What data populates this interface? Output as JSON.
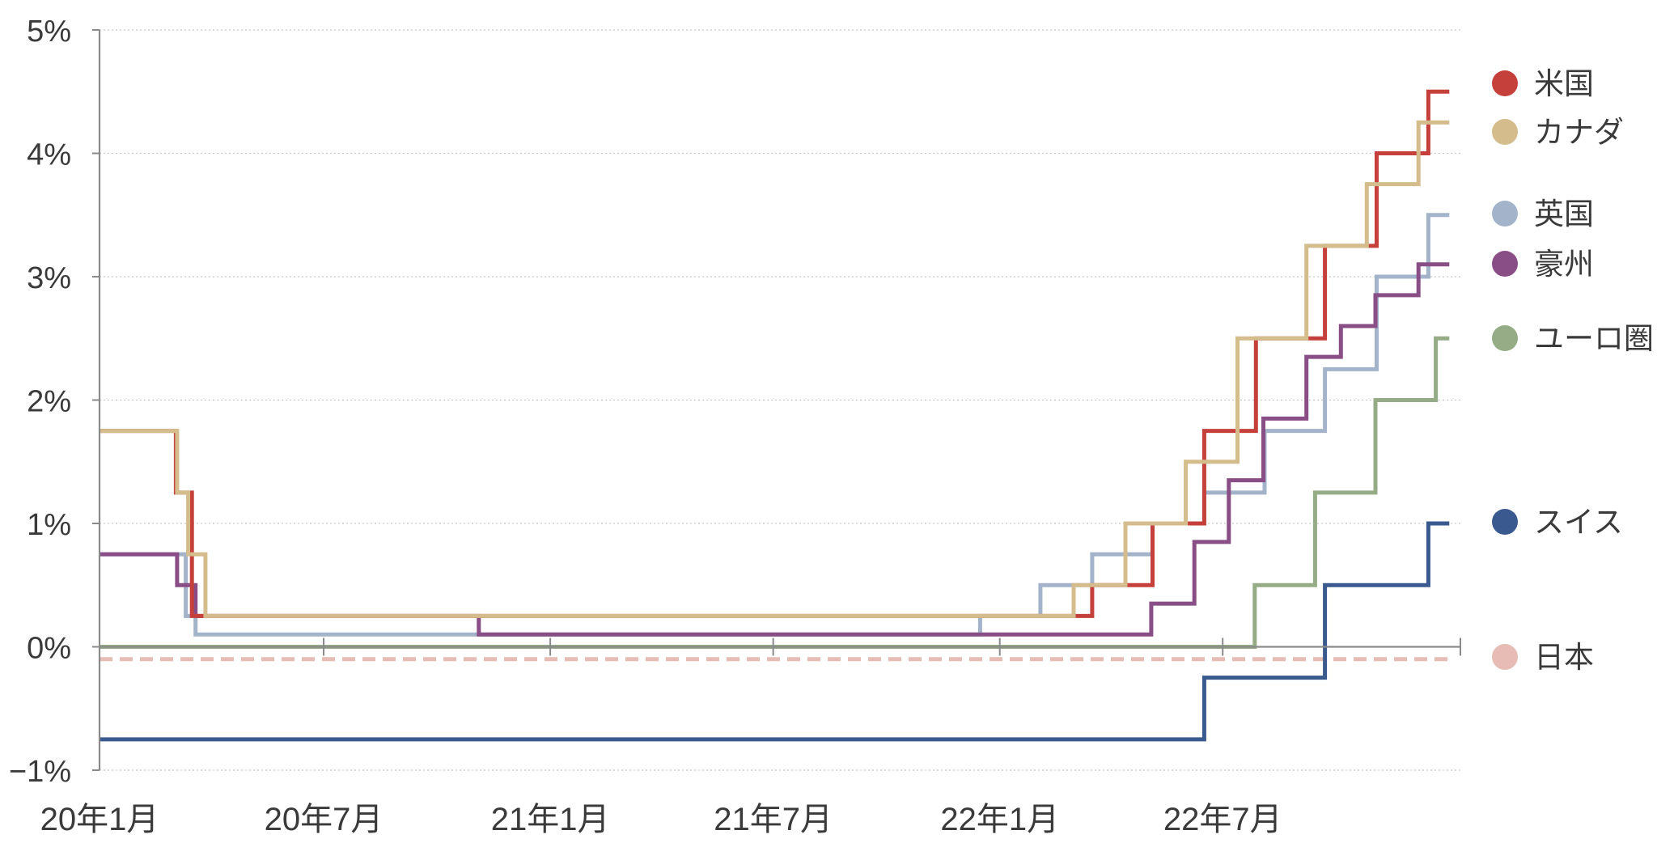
{
  "chart_data": {
    "type": "line",
    "step": true,
    "title": "",
    "xlabel": "",
    "ylabel": "",
    "y_unit": "%",
    "ylim": [
      -1,
      5
    ],
    "xlim": [
      "2020-01-01",
      "2023-01-10"
    ],
    "y_ticks": [
      {
        "value": 5,
        "label": "5%"
      },
      {
        "value": 4,
        "label": "4%"
      },
      {
        "value": 3,
        "label": "3%"
      },
      {
        "value": 2,
        "label": "2%"
      },
      {
        "value": 1,
        "label": "1%"
      },
      {
        "value": 0,
        "label": "0%"
      },
      {
        "value": -1,
        "label": "−1%"
      }
    ],
    "x_ticks": [
      {
        "date": "2020-01-01",
        "label": "20年1月"
      },
      {
        "date": "2020-07-01",
        "label": "20年7月"
      },
      {
        "date": "2021-01-01",
        "label": "21年1月"
      },
      {
        "date": "2021-07-01",
        "label": "21年7月"
      },
      {
        "date": "2022-01-01",
        "label": "22年1月"
      },
      {
        "date": "2022-07-01",
        "label": "22年7月"
      }
    ],
    "grid": {
      "horizontal": true,
      "style": "dotted"
    },
    "legend_position": "right",
    "series": [
      {
        "name": "日本",
        "color": "#e6bcb4",
        "dashed": true,
        "points": [
          [
            "2020-01-01",
            -0.1
          ],
          [
            "2023-01-01",
            -0.1
          ]
        ]
      },
      {
        "name": "ユーロ圏",
        "color": "#95ac86",
        "dashed": false,
        "points": [
          [
            "2020-01-01",
            0
          ],
          [
            "2022-07-27",
            0.5
          ],
          [
            "2022-09-14",
            1.25
          ],
          [
            "2022-11-02",
            2.0
          ],
          [
            "2022-12-21",
            2.5
          ],
          [
            "2023-01-01",
            2.5
          ]
        ]
      },
      {
        "name": "スイス",
        "color": "#3a5a8f",
        "dashed": false,
        "points": [
          [
            "2020-01-01",
            -0.75
          ],
          [
            "2022-06-16",
            -0.25
          ],
          [
            "2022-09-22",
            0.5
          ],
          [
            "2022-12-15",
            1.0
          ],
          [
            "2023-01-01",
            1.0
          ]
        ]
      },
      {
        "name": "英国",
        "color": "#a3b3c9",
        "dashed": false,
        "points": [
          [
            "2020-01-01",
            0.75
          ],
          [
            "2020-03-11",
            0.25
          ],
          [
            "2020-03-19",
            0.1
          ],
          [
            "2021-12-16",
            0.25
          ],
          [
            "2022-02-03",
            0.5
          ],
          [
            "2022-03-17",
            0.75
          ],
          [
            "2022-05-05",
            1.0
          ],
          [
            "2022-06-16",
            1.25
          ],
          [
            "2022-08-04",
            1.75
          ],
          [
            "2022-09-22",
            2.25
          ],
          [
            "2022-11-03",
            3.0
          ],
          [
            "2022-12-15",
            3.5
          ],
          [
            "2023-01-01",
            3.5
          ]
        ]
      },
      {
        "name": "豪州",
        "color": "#8a4e87",
        "dashed": false,
        "points": [
          [
            "2020-01-01",
            0.75
          ],
          [
            "2020-03-04",
            0.5
          ],
          [
            "2020-03-19",
            0.25
          ],
          [
            "2020-11-04",
            0.1
          ],
          [
            "2022-05-04",
            0.35
          ],
          [
            "2022-06-08",
            0.85
          ],
          [
            "2022-07-06",
            1.35
          ],
          [
            "2022-08-03",
            1.85
          ],
          [
            "2022-09-07",
            2.35
          ],
          [
            "2022-10-05",
            2.6
          ],
          [
            "2022-11-02",
            2.85
          ],
          [
            "2022-12-07",
            3.1
          ],
          [
            "2023-01-01",
            3.1
          ]
        ]
      },
      {
        "name": "米国",
        "color": "#c5403a",
        "dashed": false,
        "points": [
          [
            "2020-01-01",
            1.75
          ],
          [
            "2020-03-03",
            1.25
          ],
          [
            "2020-03-16",
            0.25
          ],
          [
            "2022-03-17",
            0.5
          ],
          [
            "2022-05-05",
            1.0
          ],
          [
            "2022-06-16",
            1.75
          ],
          [
            "2022-07-28",
            2.5
          ],
          [
            "2022-09-22",
            3.25
          ],
          [
            "2022-11-03",
            4.0
          ],
          [
            "2022-12-15",
            4.5
          ],
          [
            "2023-01-01",
            4.5
          ]
        ]
      },
      {
        "name": "カナダ",
        "color": "#d4bc8c",
        "dashed": false,
        "points": [
          [
            "2020-01-01",
            1.75
          ],
          [
            "2020-03-04",
            1.25
          ],
          [
            "2020-03-13",
            0.75
          ],
          [
            "2020-03-27",
            0.25
          ],
          [
            "2022-03-02",
            0.5
          ],
          [
            "2022-04-13",
            1.0
          ],
          [
            "2022-06-01",
            1.5
          ],
          [
            "2022-07-13",
            2.5
          ],
          [
            "2022-09-07",
            3.25
          ],
          [
            "2022-10-26",
            3.75
          ],
          [
            "2022-12-07",
            4.25
          ],
          [
            "2023-01-01",
            4.25
          ]
        ]
      }
    ],
    "legend": [
      {
        "name": "米国",
        "color": "#c5403a",
        "value": 4.5
      },
      {
        "name": "カナダ",
        "color": "#d4bc8c",
        "value": 4.25
      },
      {
        "name": "英国",
        "color": "#a3b3c9",
        "value": 3.5
      },
      {
        "name": "豪州",
        "color": "#8a4e87",
        "value": 3.1
      },
      {
        "name": "ユーロ圏",
        "color": "#95ac86",
        "value": 2.5
      },
      {
        "name": "スイス",
        "color": "#3a5a8f",
        "value": 1.0
      },
      {
        "name": "日本",
        "color": "#e6bcb4",
        "value": -0.1
      }
    ]
  }
}
